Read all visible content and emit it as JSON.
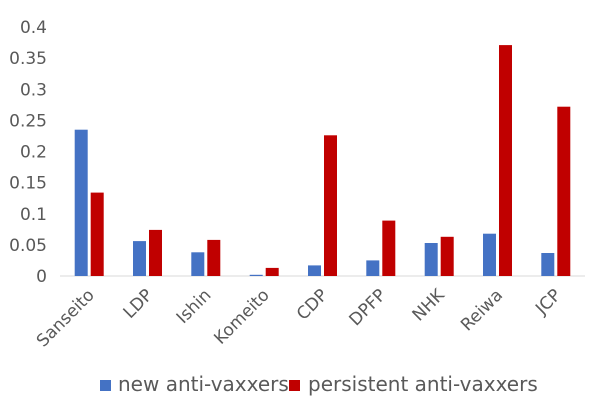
{
  "chart_data": {
    "type": "bar",
    "title": "",
    "xlabel": "",
    "ylabel": "",
    "categories": [
      "Sanseito",
      "LDP",
      "Ishin",
      "Komeito",
      "CDP",
      "DPFP",
      "NHK",
      "Reiwa",
      "JCP"
    ],
    "series": [
      {
        "name": "new anti-vaxxers",
        "color": "#4472C4",
        "values": [
          0.235,
          0.056,
          0.038,
          0.002,
          0.017,
          0.025,
          0.053,
          0.068,
          0.037
        ]
      },
      {
        "name": "persistent anti-vaxxers",
        "color": "#C00000",
        "values": [
          0.134,
          0.074,
          0.058,
          0.013,
          0.226,
          0.089,
          0.063,
          0.371,
          0.272
        ]
      }
    ],
    "ylim": [
      0,
      0.4
    ],
    "yticks": [
      "0",
      "0.05",
      "0.1",
      "0.15",
      "0.2",
      "0.25",
      "0.3",
      "0.35",
      "0.4"
    ],
    "grid": false,
    "legend_position": "bottom"
  }
}
